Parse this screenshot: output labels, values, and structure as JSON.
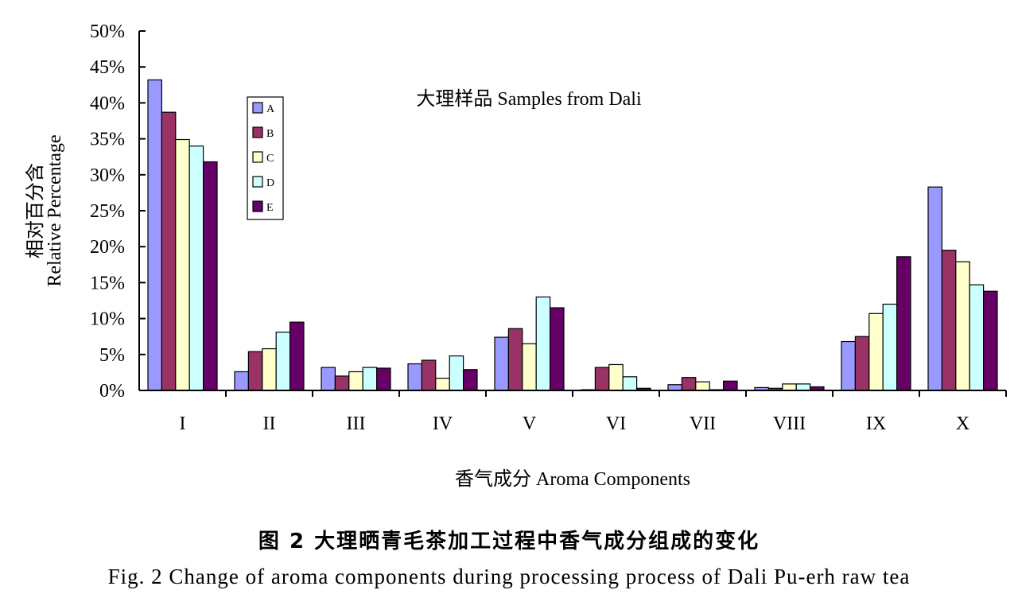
{
  "chart_data": {
    "type": "bar",
    "title": "大理样品  Samples from Dali",
    "xlabel": "香气成分  Aroma Components",
    "ylabel_cn": "相对百分含",
    "ylabel_en": "Relative Percentage",
    "ylim": [
      0,
      50
    ],
    "yticks": [
      "0%",
      "5%",
      "10%",
      "15%",
      "20%",
      "25%",
      "30%",
      "35%",
      "40%",
      "45%",
      "50%"
    ],
    "categories": [
      "I",
      "II",
      "III",
      "IV",
      "V",
      "VI",
      "VII",
      "VIII",
      "IX",
      "X"
    ],
    "legend_position": "top-left",
    "grid": false,
    "series": [
      {
        "name": "A",
        "color": "#9999ff",
        "values": [
          43.2,
          2.6,
          3.2,
          3.7,
          7.4,
          0.1,
          0.8,
          0.4,
          6.8,
          28.3
        ]
      },
      {
        "name": "B",
        "color": "#993366",
        "values": [
          38.7,
          5.4,
          2.0,
          4.2,
          8.6,
          3.2,
          1.8,
          0.3,
          7.5,
          19.5
        ]
      },
      {
        "name": "C",
        "color": "#ffffcc",
        "values": [
          34.9,
          5.8,
          2.6,
          1.7,
          6.5,
          3.6,
          1.2,
          0.9,
          10.7,
          17.9
        ]
      },
      {
        "name": "D",
        "color": "#ccffff",
        "values": [
          34.0,
          8.1,
          3.2,
          4.8,
          13.0,
          1.9,
          0.1,
          0.9,
          12.0,
          14.7
        ]
      },
      {
        "name": "E",
        "color": "#660066",
        "values": [
          31.8,
          9.5,
          3.1,
          2.9,
          11.5,
          0.3,
          1.3,
          0.5,
          18.6,
          13.8
        ]
      }
    ]
  },
  "caption": {
    "cn": "图 2  大理晒青毛茶加工过程中香气成分组成的变化",
    "en": "Fig. 2 Change of aroma components during processing process of Dali Pu-erh raw tea"
  }
}
